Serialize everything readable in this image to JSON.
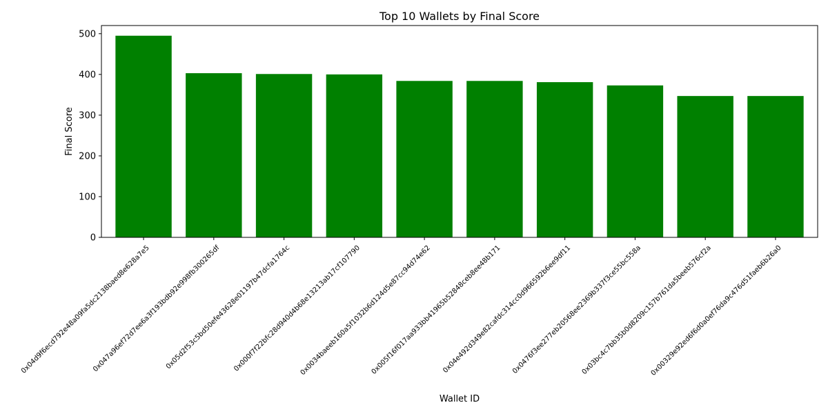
{
  "chart_data": {
    "type": "bar",
    "title": "Top 10 Wallets by Final Score",
    "xlabel": "Wallet ID",
    "ylabel": "Final Score",
    "categories": [
      "0x04d9f6ecd792e48a09fa5dc2138baed8e628a7e5",
      "0x047a96ef72d7ee6a3f193bdb92e998fb300265df",
      "0x05d2f53c5bd50efe43628e01197b47dcfa1764c",
      "0x000f7f22bfc28d940d4b68e13213ab17cf107790",
      "0x0034baeeb160a5f1032b6d124d5e87cc94d74e62",
      "0x005f16f017aa933bb41965b52848ceb8ee48b171",
      "0x04e492d349e82cafdc314cc0d966592b6ee9df11",
      "0x0476f3ee277eb20568ee2369b337f3ce55bc558a",
      "0x03bc4c7bb35b0d8209c157b761da5beeb576cf2a",
      "0x00329e92ed6f6d0a0ef76da9c476d51faeb6b26a0"
    ],
    "values": [
      495,
      403,
      401,
      400,
      384,
      384,
      381,
      373,
      347,
      347
    ],
    "yticks": [
      0,
      100,
      200,
      300,
      400,
      500
    ],
    "ylim": [
      0,
      520
    ],
    "bar_color": "#008000",
    "grid": false
  }
}
